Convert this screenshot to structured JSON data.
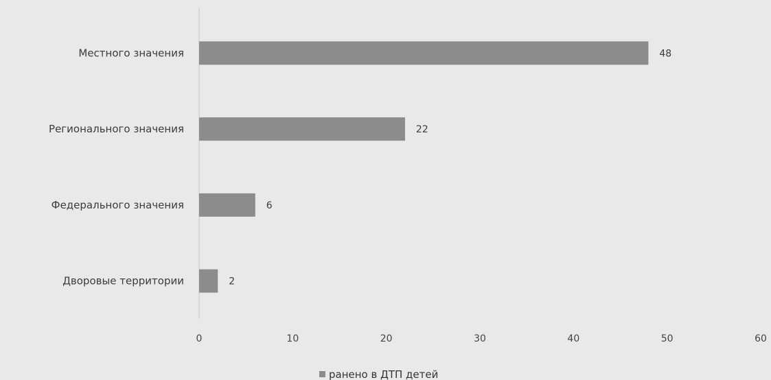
{
  "chart_data": {
    "type": "bar",
    "orientation": "horizontal",
    "categories": [
      "Местного значения",
      "Регионального значения",
      "Федерального значения",
      "Дворовые территории"
    ],
    "series": [
      {
        "name": "ранено в ДТП детей",
        "values": [
          48,
          22,
          6,
          2
        ],
        "color": "#8c8c8c"
      }
    ],
    "xlim": [
      0,
      60
    ],
    "x_ticks": [
      0,
      10,
      20,
      30,
      40,
      50,
      60
    ],
    "x_tick_labels": [
      "0",
      "10",
      "20",
      "30",
      "40",
      "50",
      "60"
    ],
    "data_labels": [
      "48",
      "22",
      "6",
      "2"
    ],
    "title": "",
    "xlabel": "",
    "ylabel": "",
    "grid": false,
    "legend": {
      "position": "bottom",
      "entries": [
        "ранено в ДТП детей"
      ]
    }
  }
}
